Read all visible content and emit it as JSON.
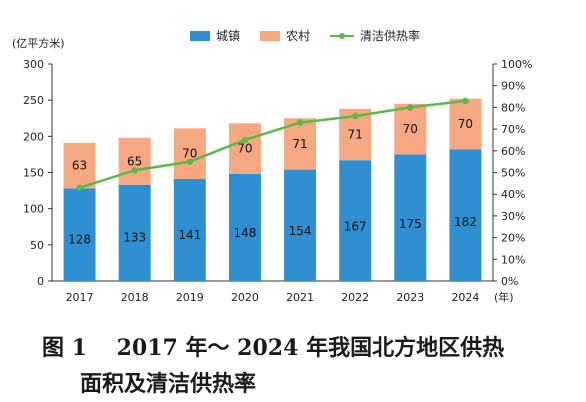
{
  "chart_data": {
    "type": "bar",
    "stacked": true,
    "unit_label": "(亿平方米)",
    "categories": [
      "2017",
      "2018",
      "2019",
      "2020",
      "2021",
      "2022",
      "2023",
      "2024"
    ],
    "x_unit": "(年)",
    "series": [
      {
        "name": "城镇",
        "type": "bar",
        "color": "#2f8fd0",
        "values": [
          128,
          133,
          141,
          148,
          154,
          167,
          175,
          182
        ]
      },
      {
        "name": "农村",
        "type": "bar",
        "color": "#f5a882",
        "values": [
          63,
          65,
          70,
          70,
          71,
          71,
          70,
          70
        ]
      },
      {
        "name": "清洁供热率",
        "type": "line",
        "axis": "right",
        "color": "#5cb84a",
        "values": [
          43,
          51,
          55,
          65,
          73,
          76,
          80,
          83
        ]
      }
    ],
    "ylim": [
      0,
      300
    ],
    "yticks": [
      0,
      50,
      100,
      150,
      200,
      250,
      300
    ],
    "y2lim": [
      0,
      100
    ],
    "y2ticks": [
      "0%",
      "10%",
      "20%",
      "30%",
      "40%",
      "50%",
      "60%",
      "70%",
      "80%",
      "90%",
      "100%"
    ],
    "legend_position": "top-center",
    "grid": false
  },
  "caption": {
    "line1": "图 1　 2017 年～ 2024 年我国北方地区供热",
    "line2": "面积及清洁供热率"
  }
}
